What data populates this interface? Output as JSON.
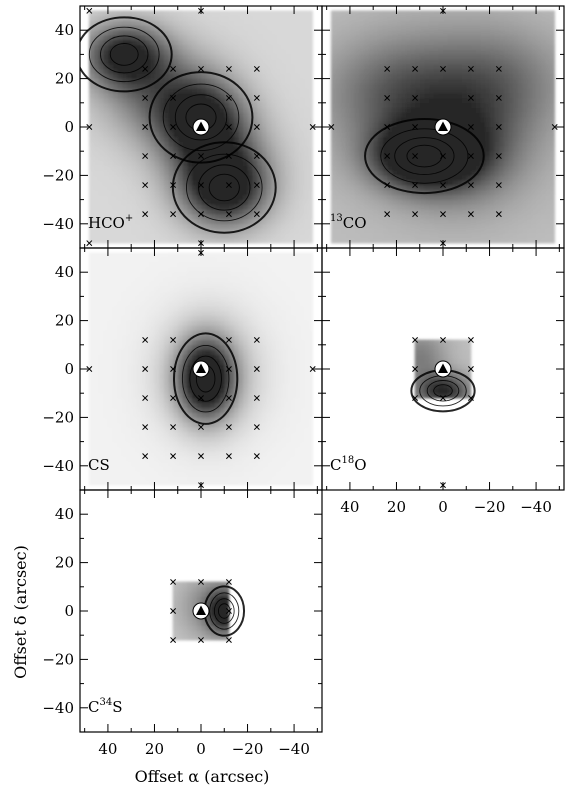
{
  "chart_data": {
    "type": "heatmap",
    "xlabel": "Offset α (arcsec)",
    "ylabel": "Offset δ (arcsec)",
    "xlim": [
      52,
      -52
    ],
    "ylim": [
      -50,
      50
    ],
    "x_ticks": [
      40,
      20,
      0,
      -20,
      -40
    ],
    "y_ticks": [
      40,
      20,
      0,
      -20,
      -40
    ],
    "x_tick_labels": [
      "40",
      "20",
      "0",
      "−20",
      "−40"
    ],
    "y_tick_labels": [
      "40",
      "20",
      "0",
      "−20",
      "−40"
    ],
    "marker": {
      "x": 0,
      "y": 0,
      "shape": "white-circle-with-black-triangle"
    },
    "panels": [
      {
        "id": "hco",
        "label": {
          "prefix": "HCO",
          "sup": "+",
          "suffix": "",
          "sup_pos": "after"
        },
        "show_x_labels": false,
        "show_y_labels": true,
        "bg": 0.18,
        "blobs": [
          {
            "x": 33,
            "y": 30,
            "sx": 12,
            "sy": 9,
            "a": 0.8
          },
          {
            "x": 0,
            "y": 4,
            "sx": 13,
            "sy": 11,
            "a": 0.7
          },
          {
            "x": -10,
            "y": -25,
            "sx": 13,
            "sy": 11,
            "a": 0.95
          },
          {
            "x": 18,
            "y": 15,
            "sx": 18,
            "sy": 14,
            "a": 0.45
          },
          {
            "x": -5,
            "y": -10,
            "sx": 16,
            "sy": 12,
            "a": 0.4
          }
        ],
        "grid_points": [
          [
            48,
            48
          ],
          [
            0,
            48
          ],
          [
            48,
            0
          ],
          [
            -48,
            0
          ],
          [
            0,
            -48
          ],
          [
            48,
            -48
          ],
          [
            24,
            24
          ],
          [
            12,
            24
          ],
          [
            0,
            24
          ],
          [
            -12,
            24
          ],
          [
            -24,
            24
          ],
          [
            24,
            12
          ],
          [
            12,
            12
          ],
          [
            -12,
            12
          ],
          [
            -24,
            12
          ],
          [
            24,
            0
          ],
          [
            12,
            0
          ],
          [
            -12,
            0
          ],
          [
            -24,
            0
          ],
          [
            24,
            -12
          ],
          [
            12,
            -12
          ],
          [
            0,
            -12
          ],
          [
            -12,
            -12
          ],
          [
            -24,
            -12
          ],
          [
            24,
            -24
          ],
          [
            12,
            -24
          ],
          [
            0,
            -24
          ],
          [
            -12,
            -24
          ],
          [
            -24,
            -24
          ],
          [
            24,
            -36
          ],
          [
            12,
            -36
          ],
          [
            0,
            -36
          ],
          [
            -12,
            -36
          ],
          [
            -24,
            -36
          ]
        ],
        "data_range": [
          -48,
          48,
          -48,
          48
        ]
      },
      {
        "id": "13co",
        "label": {
          "prefix": "",
          "sup": "13",
          "suffix": "CO",
          "sup_pos": "before"
        },
        "show_x_labels": false,
        "show_y_labels": false,
        "bg": 0.3,
        "blobs": [
          {
            "x": 8,
            "y": -12,
            "sx": 15,
            "sy": 9,
            "a": 0.9
          },
          {
            "x": -8,
            "y": -8,
            "sx": 18,
            "sy": 16,
            "a": 0.35
          },
          {
            "x": 20,
            "y": 15,
            "sx": 22,
            "sy": 15,
            "a": 0.3
          },
          {
            "x": -25,
            "y": 20,
            "sx": 20,
            "sy": 15,
            "a": 0.25
          },
          {
            "x": 0,
            "y": 5,
            "sx": 30,
            "sy": 25,
            "a": 0.25
          }
        ],
        "grid_points": [
          [
            0,
            48
          ],
          [
            48,
            0
          ],
          [
            -48,
            0
          ],
          [
            0,
            -48
          ],
          [
            24,
            24
          ],
          [
            12,
            24
          ],
          [
            0,
            24
          ],
          [
            -12,
            24
          ],
          [
            -24,
            24
          ],
          [
            24,
            12
          ],
          [
            12,
            12
          ],
          [
            -12,
            12
          ],
          [
            -24,
            12
          ],
          [
            24,
            0
          ],
          [
            12,
            0
          ],
          [
            -12,
            0
          ],
          [
            -24,
            0
          ],
          [
            24,
            -12
          ],
          [
            12,
            -12
          ],
          [
            0,
            -12
          ],
          [
            -12,
            -12
          ],
          [
            -24,
            -12
          ],
          [
            24,
            -24
          ],
          [
            12,
            -24
          ],
          [
            0,
            -24
          ],
          [
            -12,
            -24
          ],
          [
            -24,
            -24
          ],
          [
            24,
            -36
          ],
          [
            12,
            -36
          ],
          [
            0,
            -36
          ],
          [
            -12,
            -36
          ],
          [
            -24,
            -36
          ]
        ],
        "data_range": [
          -48,
          48,
          -48,
          48
        ]
      },
      {
        "id": "cs",
        "label": {
          "prefix": "CS",
          "sup": "",
          "suffix": "",
          "sup_pos": "after"
        },
        "show_x_labels": false,
        "show_y_labels": true,
        "bg": 0.06,
        "blobs": [
          {
            "x": -2,
            "y": -4,
            "sx": 8,
            "sy": 11,
            "a": 1.0
          },
          {
            "x": -3,
            "y": -2,
            "sx": 15,
            "sy": 17,
            "a": 0.35
          }
        ],
        "grid_points": [
          [
            0,
            48
          ],
          [
            48,
            0
          ],
          [
            -48,
            0
          ],
          [
            0,
            -48
          ],
          [
            24,
            12
          ],
          [
            12,
            12
          ],
          [
            -12,
            12
          ],
          [
            -24,
            12
          ],
          [
            24,
            0
          ],
          [
            12,
            0
          ],
          [
            -12,
            0
          ],
          [
            -24,
            0
          ],
          [
            24,
            -12
          ],
          [
            12,
            -12
          ],
          [
            0,
            -12
          ],
          [
            -12,
            -12
          ],
          [
            -24,
            -12
          ],
          [
            24,
            -24
          ],
          [
            12,
            -24
          ],
          [
            0,
            -24
          ],
          [
            -12,
            -24
          ],
          [
            -24,
            -24
          ],
          [
            24,
            -36
          ],
          [
            12,
            -36
          ],
          [
            0,
            -36
          ],
          [
            -12,
            -36
          ],
          [
            -24,
            -36
          ]
        ],
        "data_range": [
          -48,
          48,
          -48,
          48
        ]
      },
      {
        "id": "c18o",
        "label": {
          "prefix": "C",
          "sup": "18",
          "suffix": "O",
          "sup_pos": "after"
        },
        "show_x_labels": true,
        "show_y_labels": false,
        "bg": 0.3,
        "blobs": [
          {
            "x": 0,
            "y": -9,
            "sx": 8,
            "sy": 5,
            "a": 0.7
          },
          {
            "x": 10,
            "y": 5,
            "sx": 8,
            "sy": 8,
            "a": 0.3
          }
        ],
        "grid_points": [
          [
            12,
            12
          ],
          [
            0,
            12
          ],
          [
            -12,
            12
          ],
          [
            12,
            0
          ],
          [
            -12,
            0
          ],
          [
            12,
            -12
          ],
          [
            0,
            -12
          ],
          [
            -12,
            -12
          ],
          [
            0,
            -48
          ]
        ],
        "data_range": [
          -12,
          12,
          -12,
          12
        ]
      },
      {
        "id": "c34s",
        "label": {
          "prefix": "C",
          "sup": "34",
          "suffix": "S",
          "sup_pos": "after"
        },
        "show_x_labels": true,
        "show_y_labels": true,
        "bg": 0.25,
        "blobs": [
          {
            "x": -10,
            "y": 0,
            "sx": 5,
            "sy": 6,
            "a": 0.75
          },
          {
            "x": -4,
            "y": 2,
            "sx": 10,
            "sy": 10,
            "a": 0.3
          }
        ],
        "grid_points": [
          [
            12,
            12
          ],
          [
            0,
            12
          ],
          [
            -12,
            12
          ],
          [
            12,
            0
          ],
          [
            -12,
            0
          ],
          [
            12,
            -12
          ],
          [
            0,
            -12
          ],
          [
            -12,
            -12
          ]
        ],
        "data_range": [
          -12,
          12,
          -12,
          12
        ]
      }
    ]
  }
}
